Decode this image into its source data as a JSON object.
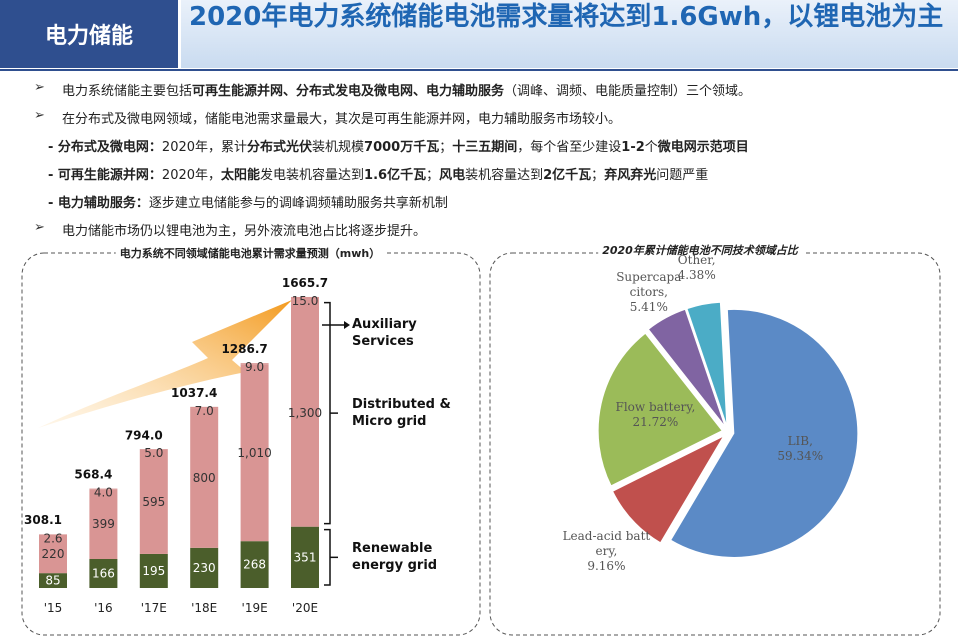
{
  "header": {
    "tag": "电力储能",
    "title": "2020年电力系统储能电池需求量将达到1.6Gwh，以锂电池为主"
  },
  "bullets": [
    {
      "runs": [
        {
          "text": "电力系统储能主要包括",
          "bold": false
        },
        {
          "text": "可再生能源并网、分布式发电及微电网、电力辅助服务",
          "bold": true
        },
        {
          "text": "（调峰、调频、电能质量控制）三个领域。",
          "bold": false
        }
      ]
    },
    {
      "runs": [
        {
          "text": "在分布式及微电网领域，储能电池需求量最大，其次是可再生能源并网，电力辅助服务市场较小。",
          "bold": false
        }
      ]
    },
    {
      "runs": [
        {
          "text": "- 分布式及微电网：",
          "bold": true
        },
        {
          "text": "2020年，累计",
          "bold": false
        },
        {
          "text": "分布式光伏",
          "bold": true
        },
        {
          "text": "装机规模",
          "bold": false
        },
        {
          "text": "7000万千瓦",
          "bold": true
        },
        {
          "text": "；",
          "bold": false
        },
        {
          "text": "十三五期间",
          "bold": true
        },
        {
          "text": "，每个省至少建设",
          "bold": false
        },
        {
          "text": "1-2",
          "bold": true
        },
        {
          "text": "个",
          "bold": false
        },
        {
          "text": "微电网示范项目",
          "bold": true
        }
      ]
    },
    {
      "runs": [
        {
          "text": "- 可再生能源并网：",
          "bold": true
        },
        {
          "text": "2020年，",
          "bold": false
        },
        {
          "text": "太阳能",
          "bold": true
        },
        {
          "text": "发电装机容量达到",
          "bold": false
        },
        {
          "text": "1.6亿千瓦",
          "bold": true
        },
        {
          "text": "；",
          "bold": false
        },
        {
          "text": "风电",
          "bold": true
        },
        {
          "text": "装机容量达到",
          "bold": false
        },
        {
          "text": "2亿千瓦",
          "bold": true
        },
        {
          "text": "；",
          "bold": false
        },
        {
          "text": "弃风弃光",
          "bold": true
        },
        {
          "text": "问题严重",
          "bold": false
        }
      ]
    },
    {
      "runs": [
        {
          "text": "- 电力辅助服务：",
          "bold": true
        },
        {
          "text": "逐步建立电储能参与的调峰调频辅助服务共享新机制",
          "bold": false
        }
      ]
    },
    {
      "runs": [
        {
          "text": "电力储能市场仍以锂电池为主，另外液流电池占比将逐步提升。",
          "bold": false
        }
      ]
    }
  ],
  "chart_data": [
    {
      "type": "stacked_bar",
      "title": "电力系统不同领域储能电池累计需求量预测（mwh）",
      "categories": [
        "'15",
        "'16",
        "'17E",
        "'18E",
        "'19E",
        "'20E"
      ],
      "series": [
        {
          "name": "Renewable energy grid",
          "color": "#4b5e2b",
          "values": [
            85,
            166,
            195,
            230,
            268,
            351
          ]
        },
        {
          "name": "Distributed & Micro grid",
          "color": "#d99594",
          "values": [
            220,
            399,
            595,
            800,
            1010,
            1300
          ],
          "value_labels": [
            "220",
            "399",
            "595",
            "800",
            "1,010",
            "1,300"
          ]
        },
        {
          "name": "Auxiliary Services",
          "color": "#d99594",
          "values": [
            2.6,
            4.0,
            5.0,
            7.0,
            9.0,
            15.0
          ],
          "value_labels": [
            "2.6",
            "4.0",
            "5.0",
            "7.0",
            "9.0",
            "15.0"
          ]
        }
      ],
      "totals": [
        308.1,
        568.4,
        794.0,
        1037.4,
        1286.7,
        1665.7
      ],
      "total_labels": [
        "308.1",
        "568.4",
        "794.0",
        "1037.4",
        "1286.7",
        "1665.7"
      ]
    },
    {
      "type": "pie",
      "title": "2020年累计储能电池不同技术领域占比",
      "categories": [
        "LIB,",
        "Lead-acid battery,",
        "Flow battery,",
        "Supercapacitors,",
        "Other,"
      ],
      "values": [
        59.34,
        9.16,
        21.72,
        5.41,
        4.38
      ],
      "value_labels": [
        "59.34%",
        "9.16%",
        "21.72%",
        "5.41%",
        "4.38%"
      ],
      "colors": [
        "#5b8ac6",
        "#c0504d",
        "#9bbb59",
        "#8064a2",
        "#4bacc6"
      ]
    }
  ]
}
